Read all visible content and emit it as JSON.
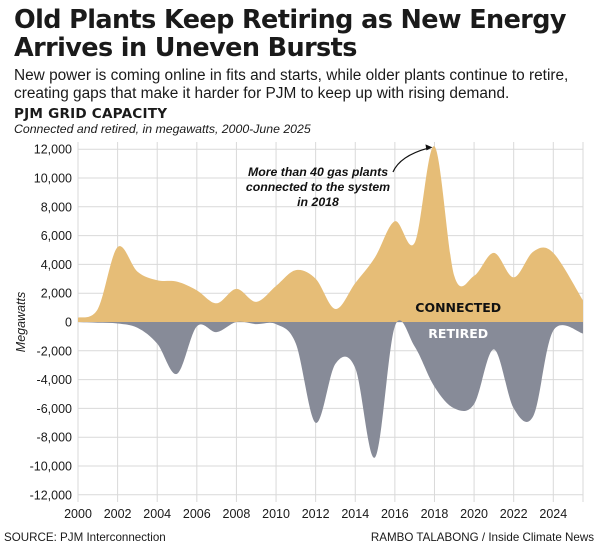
{
  "headline": "Old Plants Keep Retiring as New Energy Arrives in Uneven Bursts",
  "dek": "New power is coming online in fits and starts, while older plants continue to retire, creating gaps that make it harder for PJM to keep up with rising demand.",
  "source": "SOURCE: PJM Interconnection",
  "credit": "RAMBO TALABONG / Inside Climate News",
  "colors": {
    "connected": "#e6bd77",
    "retired": "#878b98",
    "grid": "#d9d9d9",
    "text": "#1a1a1a"
  },
  "chart_data": {
    "type": "area",
    "title": "PJM GRID CAPACITY",
    "subtitle": "Connected and retired, in megawatts, 2000-June 2025",
    "ylabel": "Megawatts",
    "xlabel": "",
    "xlim": [
      2000,
      2025.5
    ],
    "ylim": [
      -12500,
      12500
    ],
    "x_ticks": [
      2000,
      2002,
      2004,
      2006,
      2008,
      2010,
      2012,
      2014,
      2016,
      2018,
      2020,
      2022,
      2024
    ],
    "x_tick_labels": [
      "2000",
      "2002",
      "2004",
      "2006",
      "2008",
      "2010",
      "2012",
      "2014",
      "2016",
      "2018",
      "2020",
      "2022",
      "2024"
    ],
    "y_ticks": [
      12000,
      10000,
      8000,
      6000,
      4000,
      2000,
      0,
      -2000,
      -4000,
      -6000,
      -8000,
      -10000,
      -12000
    ],
    "y_tick_labels": [
      "12,000",
      "10,000",
      "8,000",
      "6,000",
      "4,000",
      "2,000",
      "0",
      "-2,000",
      "-4,000",
      "-6,000",
      "-8,000",
      "-10,000",
      "-12,000"
    ],
    "grid": true,
    "series": [
      {
        "name": "CONNECTED",
        "x": [
          2000,
          2001,
          2002,
          2003,
          2004,
          2005,
          2006,
          2007,
          2008,
          2009,
          2010,
          2011,
          2012,
          2013,
          2014,
          2015,
          2016,
          2017,
          2018,
          2019,
          2020,
          2021,
          2022,
          2023,
          2024,
          2025.5
        ],
        "values": [
          300,
          900,
          5200,
          3500,
          2900,
          2800,
          2200,
          1300,
          2300,
          1400,
          2500,
          3600,
          3000,
          900,
          2700,
          4500,
          7000,
          5500,
          12200,
          3200,
          3200,
          4800,
          3100,
          4900,
          4800,
          1500
        ]
      },
      {
        "name": "RETIRED",
        "x": [
          2000,
          2001,
          2002,
          2003,
          2004,
          2005,
          2006,
          2007,
          2008,
          2009,
          2010,
          2011,
          2012,
          2013,
          2014,
          2015,
          2016,
          2017,
          2018,
          2019,
          2020,
          2021,
          2022,
          2023,
          2024,
          2025.5
        ],
        "values": [
          0,
          -50,
          -100,
          -400,
          -1500,
          -3600,
          -300,
          -700,
          0,
          -150,
          -150,
          -1500,
          -7000,
          -2900,
          -3200,
          -9400,
          -300,
          -1700,
          -4500,
          -6000,
          -5700,
          -1900,
          -6000,
          -6500,
          -600,
          -800
        ]
      }
    ],
    "annotations": [
      {
        "text_lines": [
          "More than 40 gas plants",
          "connected to the system",
          "in 2018"
        ],
        "x": 2018,
        "y": 12200
      }
    ]
  }
}
